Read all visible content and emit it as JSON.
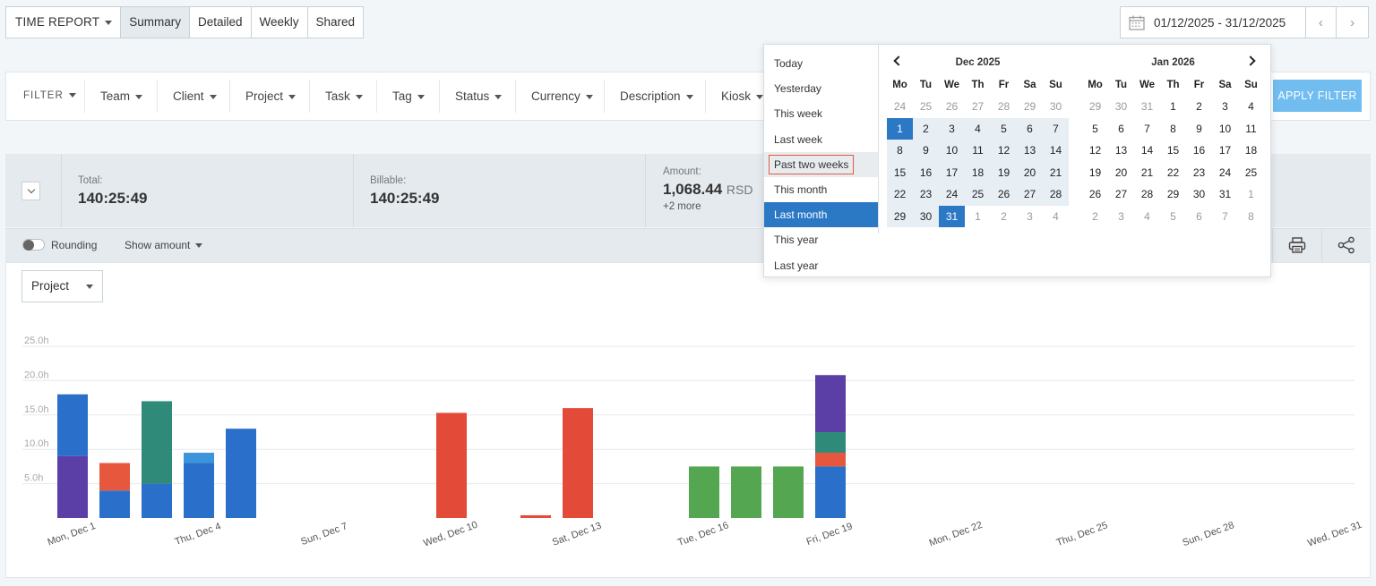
{
  "toolbar": {
    "report_label": "TIME REPORT",
    "tabs": [
      "Summary",
      "Detailed",
      "Weekly",
      "Shared"
    ],
    "active_tab": "Summary",
    "date_range": "01/12/2025 - 31/12/2025"
  },
  "filters": {
    "filter_label": "FILTER",
    "items": [
      "Team",
      "Client",
      "Project",
      "Task",
      "Tag",
      "Status",
      "Currency",
      "Description",
      "Kiosk"
    ],
    "apply_label": "APPLY FILTER"
  },
  "totals": {
    "total_label": "Total:",
    "total_value": "140:25:49",
    "billable_label": "Billable:",
    "billable_value": "140:25:49",
    "amount_label": "Amount:",
    "amount_value": "1,068.44",
    "amount_currency": "RSD",
    "amount_more": "+2 more"
  },
  "options": {
    "rounding_label": "Rounding",
    "rounding_on": false,
    "show_amount_label": "Show amount"
  },
  "group_by": "Project",
  "date_picker": {
    "presets": [
      "Today",
      "Yesterday",
      "This week",
      "Last week",
      "Past two weeks",
      "This month",
      "Last month",
      "This year",
      "Last year"
    ],
    "hovered_preset": "Past two weeks",
    "selected_preset": "Last month",
    "weekdays": [
      "Mo",
      "Tu",
      "We",
      "Th",
      "Fr",
      "Sa",
      "Su"
    ],
    "left_month": {
      "title": "Dec 2025",
      "weeks": [
        [
          "24",
          "25",
          "26",
          "27",
          "28",
          "29",
          "30"
        ],
        [
          "1",
          "2",
          "3",
          "4",
          "5",
          "6",
          "7"
        ],
        [
          "8",
          "9",
          "10",
          "11",
          "12",
          "13",
          "14"
        ],
        [
          "15",
          "16",
          "17",
          "18",
          "19",
          "20",
          "21"
        ],
        [
          "22",
          "23",
          "24",
          "25",
          "26",
          "27",
          "28"
        ],
        [
          "29",
          "30",
          "31",
          "1",
          "2",
          "3",
          "4"
        ]
      ]
    },
    "right_month": {
      "title": "Jan 2026",
      "weeks": [
        [
          "29",
          "30",
          "31",
          "1",
          "2",
          "3",
          "4"
        ],
        [
          "5",
          "6",
          "7",
          "8",
          "9",
          "10",
          "11"
        ],
        [
          "12",
          "13",
          "14",
          "15",
          "16",
          "17",
          "18"
        ],
        [
          "19",
          "20",
          "21",
          "22",
          "23",
          "24",
          "25"
        ],
        [
          "26",
          "27",
          "28",
          "29",
          "30",
          "31",
          "1"
        ],
        [
          "2",
          "3",
          "4",
          "5",
          "6",
          "7",
          "8"
        ]
      ]
    }
  },
  "colors": {
    "blue": "#2a6fc9",
    "purple": "#5b3fa6",
    "orange": "#e6573d",
    "teal": "#2f8a79",
    "lightblue": "#3a95dc",
    "green": "#55a651",
    "red": "#e34a37"
  },
  "chart_data": {
    "type": "bar",
    "stacked": true,
    "y_ticks": [
      "5.0h",
      "10.0h",
      "15.0h",
      "20.0h",
      "25.0h"
    ],
    "ylim": [
      0,
      25
    ],
    "x_tick_labels": [
      "Mon, Dec 1",
      "Thu, Dec 4",
      "Sun, Dec 7",
      "Wed, Dec 10",
      "Sat, Dec 13",
      "Tue, Dec 16",
      "Fri, Dec 19",
      "Mon, Dec 22",
      "Thu, Dec 25",
      "Sun, Dec 28",
      "Wed, Dec 31"
    ],
    "days": [
      {
        "day": 1,
        "segments": [
          {
            "color": "purple",
            "value": 9.0
          },
          {
            "color": "blue",
            "value": 9.0
          }
        ]
      },
      {
        "day": 2,
        "segments": [
          {
            "color": "blue",
            "value": 4.0
          },
          {
            "color": "orange",
            "value": 4.0
          }
        ]
      },
      {
        "day": 3,
        "segments": [
          {
            "color": "blue",
            "value": 5.0
          },
          {
            "color": "teal",
            "value": 12.0
          }
        ]
      },
      {
        "day": 4,
        "segments": [
          {
            "color": "blue",
            "value": 8.0
          },
          {
            "color": "lightblue",
            "value": 1.5
          }
        ]
      },
      {
        "day": 5,
        "segments": [
          {
            "color": "blue",
            "value": 13.0
          }
        ]
      },
      {
        "day": 6,
        "segments": []
      },
      {
        "day": 7,
        "segments": []
      },
      {
        "day": 8,
        "segments": []
      },
      {
        "day": 9,
        "segments": []
      },
      {
        "day": 10,
        "segments": [
          {
            "color": "red",
            "value": 15.3
          }
        ]
      },
      {
        "day": 11,
        "segments": []
      },
      {
        "day": 12,
        "segments": [
          {
            "color": "red",
            "value": 0.4
          }
        ]
      },
      {
        "day": 13,
        "segments": [
          {
            "color": "red",
            "value": 16.0
          }
        ]
      },
      {
        "day": 14,
        "segments": []
      },
      {
        "day": 15,
        "segments": []
      },
      {
        "day": 16,
        "segments": [
          {
            "color": "green",
            "value": 7.5
          }
        ]
      },
      {
        "day": 17,
        "segments": [
          {
            "color": "green",
            "value": 7.5
          }
        ]
      },
      {
        "day": 18,
        "segments": [
          {
            "color": "green",
            "value": 7.5
          }
        ]
      },
      {
        "day": 19,
        "segments": [
          {
            "color": "blue",
            "value": 7.5
          },
          {
            "color": "orange",
            "value": 2.0
          },
          {
            "color": "teal",
            "value": 3.0
          },
          {
            "color": "purple",
            "value": 8.3
          }
        ]
      },
      {
        "day": 20,
        "segments": []
      },
      {
        "day": 21,
        "segments": []
      },
      {
        "day": 22,
        "segments": []
      },
      {
        "day": 23,
        "segments": []
      },
      {
        "day": 24,
        "segments": []
      },
      {
        "day": 25,
        "segments": []
      },
      {
        "day": 26,
        "segments": []
      },
      {
        "day": 27,
        "segments": []
      },
      {
        "day": 28,
        "segments": []
      },
      {
        "day": 29,
        "segments": []
      },
      {
        "day": 30,
        "segments": []
      },
      {
        "day": 31,
        "segments": []
      }
    ]
  }
}
